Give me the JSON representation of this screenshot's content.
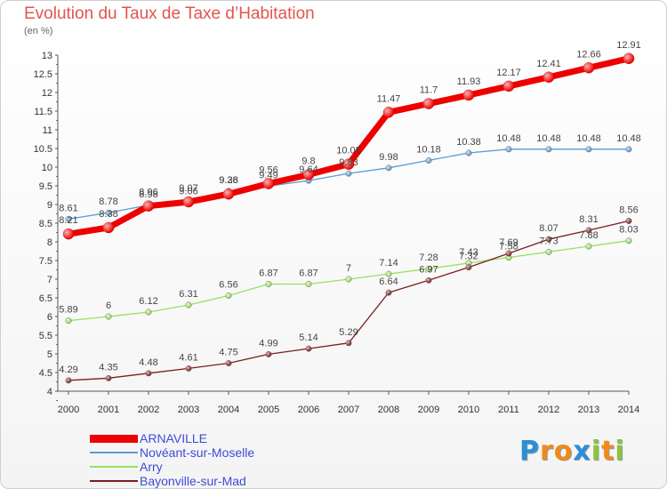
{
  "chart_data": {
    "type": "line",
    "title": "Evolution du Taux de Taxe d’Habitation",
    "ylabel": "(en %)",
    "xlabel": "",
    "x": [
      "2000",
      "2001",
      "2002",
      "2003",
      "2004",
      "2005",
      "2006",
      "2007",
      "2008",
      "2009",
      "2010",
      "2011",
      "2012",
      "2013",
      "2014"
    ],
    "ylim": [
      4,
      13
    ],
    "yticks": [
      "4",
      "4.5",
      "5",
      "5.5",
      "6",
      "6.5",
      "7",
      "7.5",
      "8",
      "8.5",
      "9",
      "9.5",
      "10",
      "10.5",
      "11",
      "11.5",
      "12",
      "12.5",
      "13"
    ],
    "grid": false,
    "legend_position": "bottom-left",
    "series": [
      {
        "name": "ARNAVILLE",
        "color": "#ee0000",
        "values": [
          8.21,
          8.38,
          8.96,
          9.07,
          9.28,
          9.56,
          9.8,
          10.08,
          11.47,
          11.7,
          11.93,
          12.17,
          12.41,
          12.66,
          12.91
        ],
        "labels": [
          "8.21",
          "8.38",
          "8.96",
          "9.07",
          "9.28",
          "9.56",
          "9.8",
          "10.08",
          "11.47",
          "11.7",
          "11.93",
          "12.17",
          "12.41",
          "12.66",
          "12.91"
        ]
      },
      {
        "name": "Novéant-sur-Moselle",
        "color": "#5b9bd5",
        "values": [
          8.61,
          8.78,
          8.98,
          9.06,
          9.36,
          9.49,
          9.64,
          9.83,
          9.98,
          10.18,
          10.38,
          10.48,
          10.48,
          10.48,
          10.48
        ],
        "labels": [
          "8.61",
          "8.78",
          "8.98",
          "9.06",
          "9.36",
          "9.49",
          "9.64",
          "9.83",
          "9.98",
          "10.18",
          "10.38",
          "10.48",
          "10.48",
          "10.48",
          "10.48"
        ]
      },
      {
        "name": "Arry",
        "color": "#99e060",
        "values": [
          5.89,
          6,
          6.12,
          6.31,
          6.56,
          6.87,
          6.87,
          7,
          7.14,
          7.28,
          7.43,
          7.58,
          7.73,
          7.88,
          8.03
        ],
        "labels": [
          "5.89",
          "6",
          "6.12",
          "6.31",
          "6.56",
          "6.87",
          "6.87",
          "7",
          "7.14",
          "7.28",
          "7.43",
          "7.58",
          "7.73",
          "7.88",
          "8.03"
        ]
      },
      {
        "name": "Bayonville-sur-Mad",
        "color": "#7a1e1e",
        "values": [
          4.29,
          4.35,
          4.48,
          4.61,
          4.75,
          4.99,
          5.14,
          5.29,
          6.64,
          6.97,
          7.32,
          7.69,
          8.07,
          8.31,
          8.56
        ],
        "labels": [
          "4.29",
          "4.35",
          "4.48",
          "4.61",
          "4.75",
          "4.99",
          "5.14",
          "5.29",
          "6.64",
          "6.97",
          "7.32",
          "7.69",
          "8.07",
          "8.31",
          "8.56"
        ]
      }
    ]
  },
  "logo": {
    "letters": [
      "P",
      "r",
      "o",
      "x",
      "i",
      "t",
      "i"
    ],
    "colors": [
      "#2a8fd8",
      "#f08a1c",
      "#f08a1c",
      "#2a8fd8",
      "#88c540",
      "#f08a1c",
      "#88c540"
    ]
  }
}
